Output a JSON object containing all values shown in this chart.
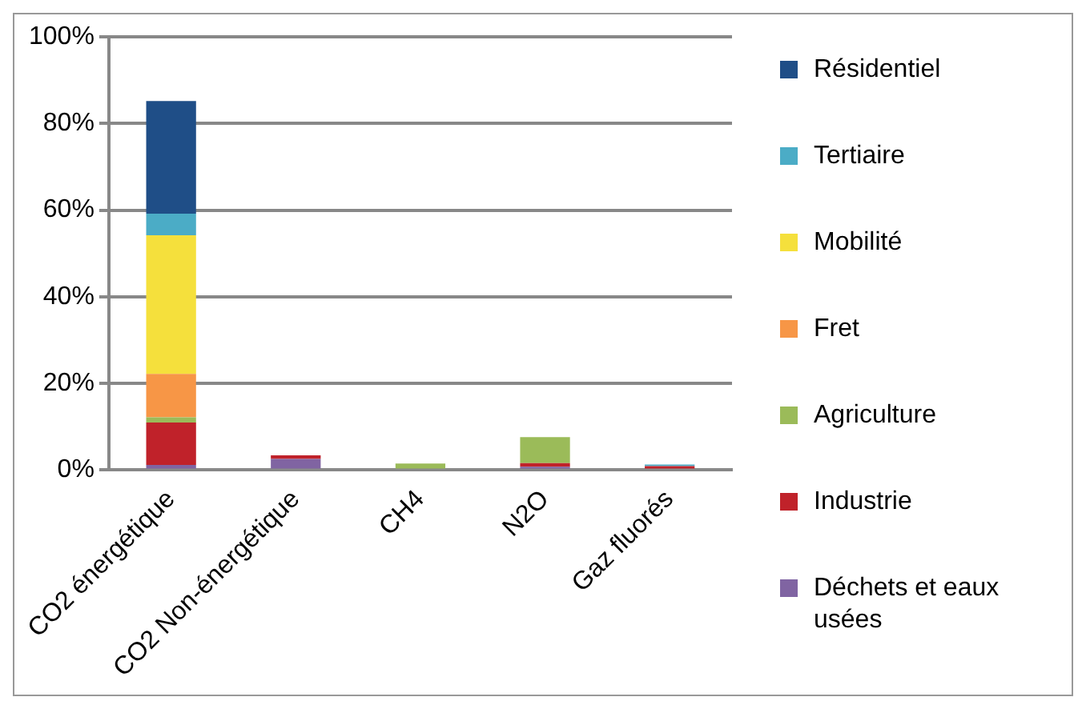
{
  "chart_data": {
    "type": "bar",
    "stacked": true,
    "categories": [
      "CO2 énergétique",
      "CO2 Non-énergétique",
      "CH4",
      "N2O",
      "Gaz fluorés"
    ],
    "series": [
      {
        "name": "Déchets et eaux usées",
        "color": "#8064a2",
        "values": [
          1.2,
          2.6,
          null,
          0.8,
          null
        ]
      },
      {
        "name": "Industrie",
        "color": "#c0222a",
        "values": [
          9.8,
          0.8,
          null,
          0.8,
          0.9
        ]
      },
      {
        "name": "Agriculture",
        "color": "#9bbb59",
        "values": [
          1.2,
          null,
          1.5,
          6,
          null
        ]
      },
      {
        "name": "Fret",
        "color": "#f79646",
        "values": [
          10,
          null,
          null,
          null,
          null
        ]
      },
      {
        "name": "Mobilité",
        "color": "#f5e03c",
        "values": [
          32,
          null,
          null,
          null,
          null
        ]
      },
      {
        "name": "Tertiaire",
        "color": "#4bacc6",
        "values": [
          5,
          null,
          null,
          null,
          0.4
        ]
      },
      {
        "name": "Résidentiel",
        "color": "#1f4e87",
        "values": [
          26,
          null,
          null,
          null,
          null
        ]
      }
    ],
    "ylim": [
      0,
      100
    ],
    "yticks": [
      {
        "value": 0,
        "label": "0%"
      },
      {
        "value": 20,
        "label": "20%"
      },
      {
        "value": 40,
        "label": "40%"
      },
      {
        "value": 60,
        "label": "60%"
      },
      {
        "value": 80,
        "label": "80%"
      },
      {
        "value": 100,
        "label": "100%"
      }
    ],
    "grid": "y",
    "legend": "right"
  }
}
